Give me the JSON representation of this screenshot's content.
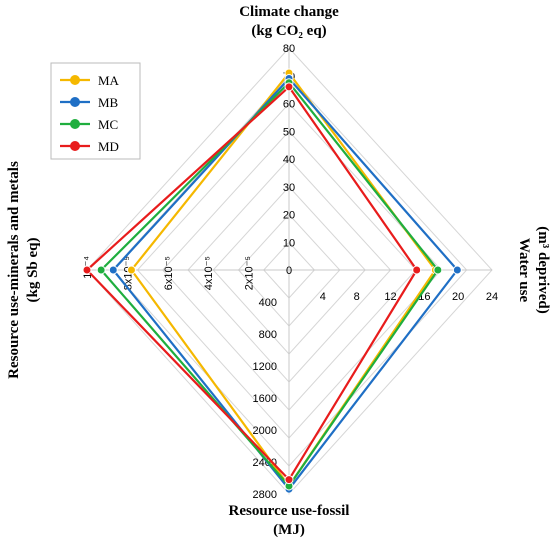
{
  "chart_data": {
    "type": "radar",
    "axes": [
      {
        "id": "top",
        "title_lines": [
          "Climate change",
          "(kg CO₂ eq)"
        ],
        "ticks": [
          "0",
          "10",
          "20",
          "30",
          "40",
          "50",
          "60",
          "70",
          "80"
        ],
        "max": 80
      },
      {
        "id": "right",
        "title_lines": [
          "Water use",
          "(m³ deprived)"
        ],
        "ticks": [
          "0",
          "4",
          "8",
          "12",
          "16",
          "20",
          "24"
        ],
        "max": 24
      },
      {
        "id": "bottom",
        "title_lines": [
          "Resource use-fossil",
          "(MJ)"
        ],
        "ticks": [
          "0",
          "400",
          "800",
          "1200",
          "1600",
          "2000",
          "2400",
          "2800"
        ],
        "max": 2800
      },
      {
        "id": "left",
        "title_lines": [
          "Resource use-minerals and metals",
          "(kg Sb eq)"
        ],
        "ticks": [
          "0",
          "2x10⁻⁵",
          "4x10⁻⁵",
          "6x10⁻⁵",
          "8x10⁻⁵",
          "10⁻⁴"
        ],
        "max": 0.0001
      }
    ],
    "series": [
      {
        "name": "MA",
        "color": "#f5b800",
        "values": [
          71,
          17.3,
          2700,
          7.8e-05
        ]
      },
      {
        "name": "MB",
        "color": "#1f6fc5",
        "values": [
          69,
          19.9,
          2740,
          8.7e-05
        ]
      },
      {
        "name": "MC",
        "color": "#1fae3e",
        "values": [
          67.5,
          17.6,
          2700,
          9.3e-05
        ]
      },
      {
        "name": "MD",
        "color": "#e81c1c",
        "values": [
          66,
          15.1,
          2620,
          0.0001
        ]
      }
    ],
    "legend_position": "top-left"
  }
}
